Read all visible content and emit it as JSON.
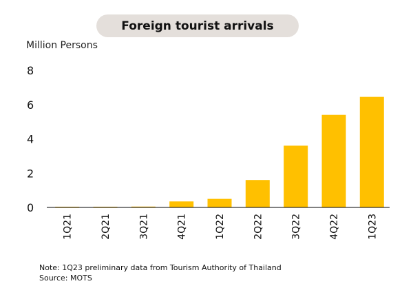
{
  "chart_data": {
    "type": "bar",
    "title": "Foreign tourist arrivals",
    "ylabel": "Million Persons",
    "xlabel": "",
    "categories": [
      "1Q21",
      "2Q21",
      "3Q21",
      "4Q21",
      "1Q22",
      "2Q22",
      "3Q22",
      "4Q22",
      "1Q23"
    ],
    "values": [
      0.01,
      0.01,
      0.05,
      0.35,
      0.5,
      1.6,
      3.6,
      5.4,
      6.45
    ],
    "ylim": [
      0,
      8
    ],
    "yticks": [
      0,
      2,
      4,
      6,
      8
    ],
    "grid": false,
    "bar_color": "#ffc000"
  },
  "notes": {
    "note": "Note: 1Q23 preliminary data from Tourism Authority of Thailand",
    "source": "Source: MOTS"
  }
}
